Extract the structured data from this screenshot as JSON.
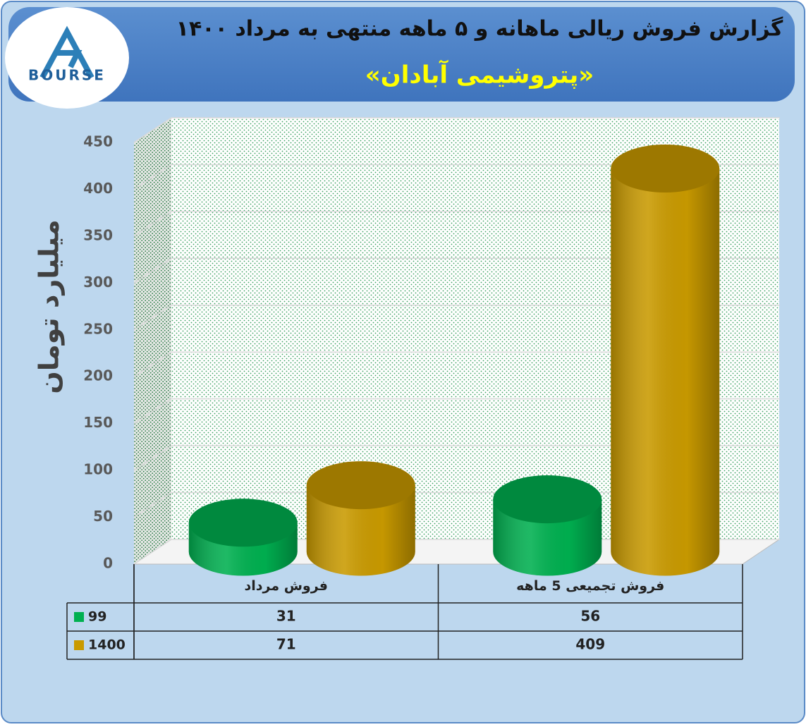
{
  "logo": "BOURSE",
  "chart_data": {
    "type": "bar3d",
    "title": "گزارش فروش ریالی ماهانه و ۵ ماهه منتهی به مرداد ۱۴۰۰",
    "subtitle": "«پتروشیمی آبادان»",
    "y_label": "میلیارد تومان",
    "categories": [
      "فروش مرداد",
      "فروش تجمیعی 5  ماهه"
    ],
    "series": [
      {
        "name": "99",
        "color": "#00b050",
        "values": [
          31,
          56
        ]
      },
      {
        "name": "1400",
        "color": "#c99a00",
        "values": [
          71,
          409
        ]
      }
    ],
    "ylim": [
      0,
      450
    ],
    "yticks": [
      0,
      50,
      100,
      150,
      200,
      250,
      300,
      350,
      400,
      450
    ],
    "grid": true,
    "data_table": true
  }
}
